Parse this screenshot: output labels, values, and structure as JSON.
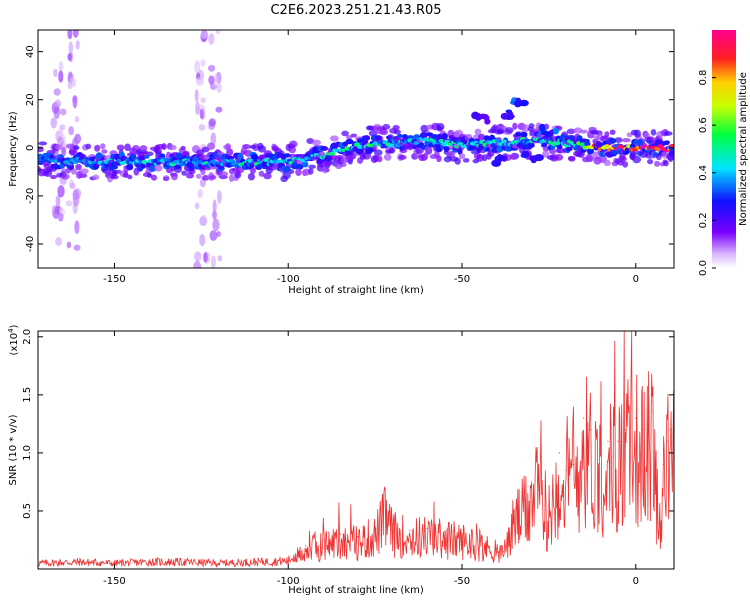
{
  "page_title": "C2E6.2023.251.21.43.R05",
  "chart_data": [
    {
      "type": "heatmap",
      "xlabel": "Height of straight line (km)",
      "ylabel": "Frequency (Hz)",
      "xlim": [
        -172,
        11
      ],
      "ylim": [
        -50,
        49
      ],
      "xticks": [
        -150,
        -100,
        -50,
        0
      ],
      "yticks": [
        -40,
        -20,
        0,
        20,
        40
      ],
      "colorbar": {
        "label": "Normalized spectral amplitude",
        "range": [
          0,
          1
        ],
        "ticks": [
          0.0,
          0.2,
          0.4,
          0.6,
          0.8
        ],
        "colormap": "rainbow (purple-blue-cyan-green-yellow-red-magenta)"
      },
      "ridge": {
        "x": [
          -172,
          -150,
          -130,
          -110,
          -100,
          -90,
          -80,
          -70,
          -60,
          -50,
          -40,
          -30,
          -20,
          -10,
          0,
          10
        ],
        "freq": [
          -5,
          -6,
          -6,
          -6,
          -6,
          -3,
          1,
          2,
          3,
          1,
          2,
          3,
          2,
          0,
          0,
          0
        ],
        "amplitude": [
          0.35,
          0.38,
          0.42,
          0.45,
          0.45,
          0.45,
          0.5,
          0.45,
          0.42,
          0.45,
          0.45,
          0.45,
          0.5,
          0.8,
          0.9,
          0.9
        ]
      },
      "features": [
        {
          "x": -37,
          "freq": 14,
          "amplitude": 0.25
        },
        {
          "x": -33,
          "freq": 19,
          "amplitude": 0.3
        },
        {
          "x": -45,
          "freq": 12,
          "amplitude": 0.2
        },
        {
          "x": -40,
          "freq": -5,
          "amplitude": 0.25
        },
        {
          "x": -30,
          "freq": -4,
          "amplitude": 0.25
        },
        {
          "x": -25,
          "freq": 7,
          "amplitude": 0.3
        }
      ]
    },
    {
      "type": "line",
      "xlabel": "Height of straight line (km)",
      "ylabel": "SNR (10 * v/v)",
      "yscale_label": "(x10",
      "yscale_exp": "4",
      "yscale_close": ")",
      "xlim": [
        -172,
        11
      ],
      "ylim": [
        0,
        2.05
      ],
      "xticks": [
        -150,
        -100,
        -50,
        0
      ],
      "yticks": [
        0.5,
        1.0,
        1.5,
        2.0
      ],
      "series": [
        {
          "color": "#ee3333",
          "x": [
            -172,
            -160,
            -150,
            -140,
            -130,
            -120,
            -110,
            -100,
            -95,
            -90,
            -85,
            -80,
            -75,
            -72,
            -70,
            -65,
            -60,
            -55,
            -50,
            -45,
            -40,
            -38,
            -35,
            -32,
            -30,
            -28,
            -25,
            -22,
            -20,
            -18,
            -15,
            -13,
            -10,
            -8,
            -5,
            -3,
            0,
            2,
            5,
            7,
            8,
            9,
            10,
            11
          ],
          "y": [
            0.05,
            0.06,
            0.05,
            0.06,
            0.06,
            0.05,
            0.06,
            0.07,
            0.2,
            0.25,
            0.3,
            0.28,
            0.35,
            0.55,
            0.38,
            0.33,
            0.35,
            0.32,
            0.3,
            0.25,
            0.18,
            0.15,
            0.5,
            0.6,
            0.75,
            0.8,
            0.55,
            1.0,
            0.85,
            0.9,
            1.3,
            1.2,
            1.0,
            1.1,
            1.1,
            1.2,
            1.3,
            1.2,
            1.35,
            0.3,
            0.9,
            1.1,
            1.2,
            1.25
          ]
        }
      ]
    }
  ]
}
